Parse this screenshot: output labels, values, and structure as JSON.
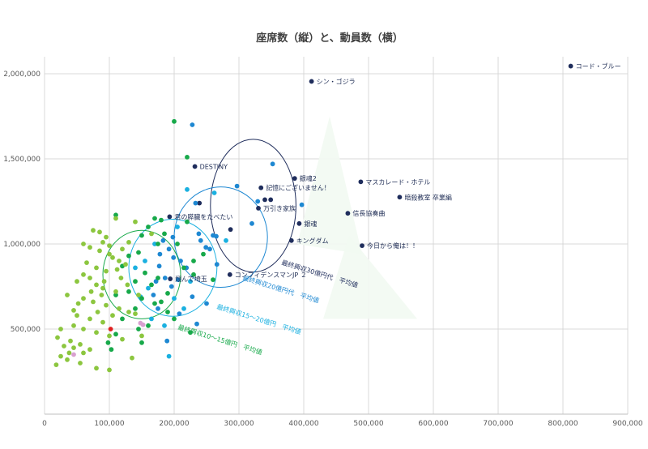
{
  "chart_data": {
    "type": "scatter",
    "title": "座席数（縦）と、動員数（横）",
    "xlabel": "",
    "ylabel": "",
    "xlim": [
      0,
      900000
    ],
    "ylim": [
      0,
      2100000
    ],
    "x_ticks": [
      0,
      100000,
      200000,
      300000,
      400000,
      500000,
      600000,
      700000,
      800000,
      900000
    ],
    "x_tick_labels": [
      "0",
      "100,000",
      "200,000",
      "300,000",
      "400,000",
      "500,000",
      "600,000",
      "700,000",
      "800,000",
      "900,000"
    ],
    "y_ticks": [
      500000,
      1000000,
      1500000,
      2000000
    ],
    "y_tick_labels": [
      "500,000",
      "1,000,000",
      "1,500,000",
      "2,000,000"
    ],
    "grid": true,
    "legend": "none",
    "colors": {
      "navy": "#1f2d5c",
      "blue": "#1e88d2",
      "cyan": "#1ab0e0",
      "green": "#17a94a",
      "lightgreen": "#8cc63f",
      "red": "#e02020",
      "pink": "#d9a0d0",
      "arrow": "#f2faf2",
      "gridline": "#d9d9d9"
    },
    "labeled_points": [
      {
        "label": "コード・ブルー",
        "x": 812000,
        "y": 2045000
      },
      {
        "label": "シン・ゴジラ",
        "x": 412000,
        "y": 1955000
      },
      {
        "label": "DESTINY",
        "x": 232000,
        "y": 1455000
      },
      {
        "label": "銀魂2",
        "x": 386000,
        "y": 1385000
      },
      {
        "label": "マスカレード・ホテル",
        "x": 488000,
        "y": 1365000
      },
      {
        "label": "暗殺教室 卒業編",
        "x": 548000,
        "y": 1275000
      },
      {
        "label": "記憶にございません！",
        "x": 334000,
        "y": 1330000
      },
      {
        "label": "万引き家族",
        "x": 330000,
        "y": 1210000
      },
      {
        "label": "信長協奏曲",
        "x": 468000,
        "y": 1180000
      },
      {
        "label": "君の膵臓をたべたい",
        "x": 193000,
        "y": 1160000
      },
      {
        "label": "銀魂",
        "x": 393000,
        "y": 1120000
      },
      {
        "label": "キングダム",
        "x": 381000,
        "y": 1020000
      },
      {
        "label": "今日から俺は！！",
        "x": 490000,
        "y": 990000
      },
      {
        "label": "コンフィデンスマンJP ２",
        "x": 286000,
        "y": 820000
      },
      {
        "label": "翔んで埼玉",
        "x": 194000,
        "y": 795000
      }
    ],
    "series": [
      {
        "color": "navy",
        "points": [
          [
            232000,
            1455000
          ],
          [
            386000,
            1385000
          ],
          [
            488000,
            1365000
          ],
          [
            548000,
            1275000
          ],
          [
            334000,
            1330000
          ],
          [
            330000,
            1210000
          ],
          [
            468000,
            1180000
          ],
          [
            193000,
            1160000
          ],
          [
            393000,
            1120000
          ],
          [
            381000,
            1020000
          ],
          [
            490000,
            990000
          ],
          [
            286000,
            820000
          ],
          [
            194000,
            795000
          ],
          [
            812000,
            2045000
          ],
          [
            412000,
            1955000
          ],
          [
            349000,
            1260000
          ],
          [
            340000,
            1260000
          ],
          [
            287000,
            1085000
          ],
          [
            239000,
            1240000
          ]
        ]
      },
      {
        "color": "blue",
        "points": [
          [
            228000,
            1700000
          ],
          [
            352000,
            1470000
          ],
          [
            297000,
            1340000
          ],
          [
            233000,
            1240000
          ],
          [
            329000,
            1250000
          ],
          [
            320000,
            1120000
          ],
          [
            198000,
            1040000
          ],
          [
            265000,
            1045000
          ],
          [
            260000,
            1050000
          ],
          [
            238000,
            1060000
          ],
          [
            249000,
            980000
          ],
          [
            255000,
            970000
          ],
          [
            266000,
            880000
          ],
          [
            192000,
            970000
          ],
          [
            177000,
            870000
          ],
          [
            186000,
            800000
          ],
          [
            206000,
            790000
          ],
          [
            196000,
            750000
          ],
          [
            168000,
            700000
          ],
          [
            175000,
            620000
          ],
          [
            208000,
            590000
          ],
          [
            189000,
            430000
          ],
          [
            228000,
            690000
          ],
          [
            250000,
            650000
          ],
          [
            210000,
            900000
          ],
          [
            178000,
            940000
          ],
          [
            199000,
            920000
          ],
          [
            219000,
            860000
          ],
          [
            183000,
            1020000
          ],
          [
            397000,
            1230000
          ],
          [
            235000,
            530000
          ],
          [
            172000,
            780000
          ],
          [
            241000,
            1020000
          ]
        ]
      },
      {
        "color": "cyan",
        "points": [
          [
            220000,
            1320000
          ],
          [
            280000,
            1020000
          ],
          [
            170000,
            1000000
          ],
          [
            155000,
            900000
          ],
          [
            160000,
            740000
          ],
          [
            200000,
            680000
          ],
          [
            215000,
            620000
          ],
          [
            165000,
            560000
          ],
          [
            185000,
            520000
          ],
          [
            140000,
            860000
          ],
          [
            192000,
            340000
          ],
          [
            262000,
            1300000
          ],
          [
            225000,
            780000
          ],
          [
            148000,
            690000
          ],
          [
            205000,
            1100000
          ]
        ]
      },
      {
        "color": "green",
        "points": [
          [
            200000,
            1720000
          ],
          [
            220000,
            1510000
          ],
          [
            110000,
            1170000
          ],
          [
            170000,
            1150000
          ],
          [
            180000,
            1140000
          ],
          [
            150000,
            1050000
          ],
          [
            160000,
            1100000
          ],
          [
            175000,
            1000000
          ],
          [
            145000,
            950000
          ],
          [
            130000,
            930000
          ],
          [
            120000,
            870000
          ],
          [
            155000,
            830000
          ],
          [
            175000,
            800000
          ],
          [
            165000,
            760000
          ],
          [
            130000,
            720000
          ],
          [
            110000,
            700000
          ],
          [
            150000,
            680000
          ],
          [
            170000,
            650000
          ],
          [
            140000,
            620000
          ],
          [
            190000,
            600000
          ],
          [
            120000,
            560000
          ],
          [
            160000,
            520000
          ],
          [
            145000,
            500000
          ],
          [
            110000,
            470000
          ],
          [
            150000,
            420000
          ],
          [
            200000,
            560000
          ],
          [
            225000,
            480000
          ],
          [
            215000,
            860000
          ],
          [
            230000,
            900000
          ],
          [
            245000,
            940000
          ],
          [
            98000,
            420000
          ],
          [
            103000,
            380000
          ],
          [
            190000,
            710000
          ],
          [
            180000,
            660000
          ],
          [
            230000,
            820000
          ],
          [
            260000,
            790000
          ],
          [
            205000,
            1000000
          ],
          [
            220000,
            1130000
          ],
          [
            185000,
            1060000
          ],
          [
            140000,
            780000
          ]
        ]
      },
      {
        "color": "lightgreen",
        "points": [
          [
            75000,
            1080000
          ],
          [
            85000,
            1070000
          ],
          [
            95000,
            1040000
          ],
          [
            110000,
            1150000
          ],
          [
            60000,
            1000000
          ],
          [
            70000,
            980000
          ],
          [
            85000,
            960000
          ],
          [
            100000,
            940000
          ],
          [
            105000,
            920000
          ],
          [
            115000,
            900000
          ],
          [
            125000,
            880000
          ],
          [
            80000,
            860000
          ],
          [
            95000,
            840000
          ],
          [
            60000,
            820000
          ],
          [
            70000,
            800000
          ],
          [
            50000,
            780000
          ],
          [
            80000,
            760000
          ],
          [
            90000,
            740000
          ],
          [
            110000,
            720000
          ],
          [
            35000,
            700000
          ],
          [
            60000,
            680000
          ],
          [
            75000,
            660000
          ],
          [
            95000,
            640000
          ],
          [
            115000,
            620000
          ],
          [
            130000,
            600000
          ],
          [
            50000,
            580000
          ],
          [
            70000,
            560000
          ],
          [
            90000,
            540000
          ],
          [
            45000,
            520000
          ],
          [
            60000,
            500000
          ],
          [
            80000,
            480000
          ],
          [
            100000,
            460000
          ],
          [
            120000,
            440000
          ],
          [
            20000,
            450000
          ],
          [
            40000,
            430000
          ],
          [
            55000,
            410000
          ],
          [
            70000,
            380000
          ],
          [
            30000,
            400000
          ],
          [
            45000,
            390000
          ],
          [
            60000,
            360000
          ],
          [
            25000,
            340000
          ],
          [
            35000,
            320000
          ],
          [
            55000,
            300000
          ],
          [
            80000,
            270000
          ],
          [
            100000,
            260000
          ],
          [
            135000,
            330000
          ],
          [
            140000,
            590000
          ],
          [
            120000,
            970000
          ],
          [
            130000,
            1010000
          ],
          [
            100000,
            990000
          ],
          [
            90000,
            1010000
          ],
          [
            65000,
            890000
          ],
          [
            145000,
            700000
          ],
          [
            45000,
            610000
          ],
          [
            25000,
            500000
          ],
          [
            118000,
            800000
          ],
          [
            128000,
            760000
          ],
          [
            88000,
            700000
          ],
          [
            105000,
            580000
          ],
          [
            150000,
            460000
          ],
          [
            38000,
            360000
          ],
          [
            18000,
            290000
          ],
          [
            92000,
            780000
          ],
          [
            112000,
            850000
          ],
          [
            140000,
            1130000
          ],
          [
            165000,
            1060000
          ],
          [
            72000,
            720000
          ],
          [
            52000,
            650000
          ],
          [
            82000,
            600000
          ]
        ]
      },
      {
        "color": "red",
        "points": [
          [
            102000,
            500000
          ]
        ]
      },
      {
        "color": "pink",
        "points": [
          [
            45000,
            350000
          ],
          [
            148000,
            535000
          ],
          [
            152000,
            525000
          ]
        ]
      }
    ],
    "average_circles": [
      {
        "label": "最終興収30億円代　平均値",
        "color": "#1f2d5c",
        "cx": 322000,
        "cy": 1225000,
        "rx": 66000,
        "ry": 390000
      },
      {
        "label": "最終興収20億円代　平均値",
        "color": "#1e88d2",
        "cx": 272000,
        "cy": 1040000,
        "rx": 72000,
        "ry": 295000
      },
      {
        "label": "最終興収15～20億円　平均値",
        "color": "#1ab0e0",
        "cx": 198000,
        "cy": 860000,
        "rx": 68000,
        "ry": 285000
      },
      {
        "label": "最終興収10～15億円　平均値",
        "color": "#17a94a",
        "cx": 150000,
        "cy": 820000,
        "rx": 60000,
        "ry": 260000
      }
    ]
  }
}
